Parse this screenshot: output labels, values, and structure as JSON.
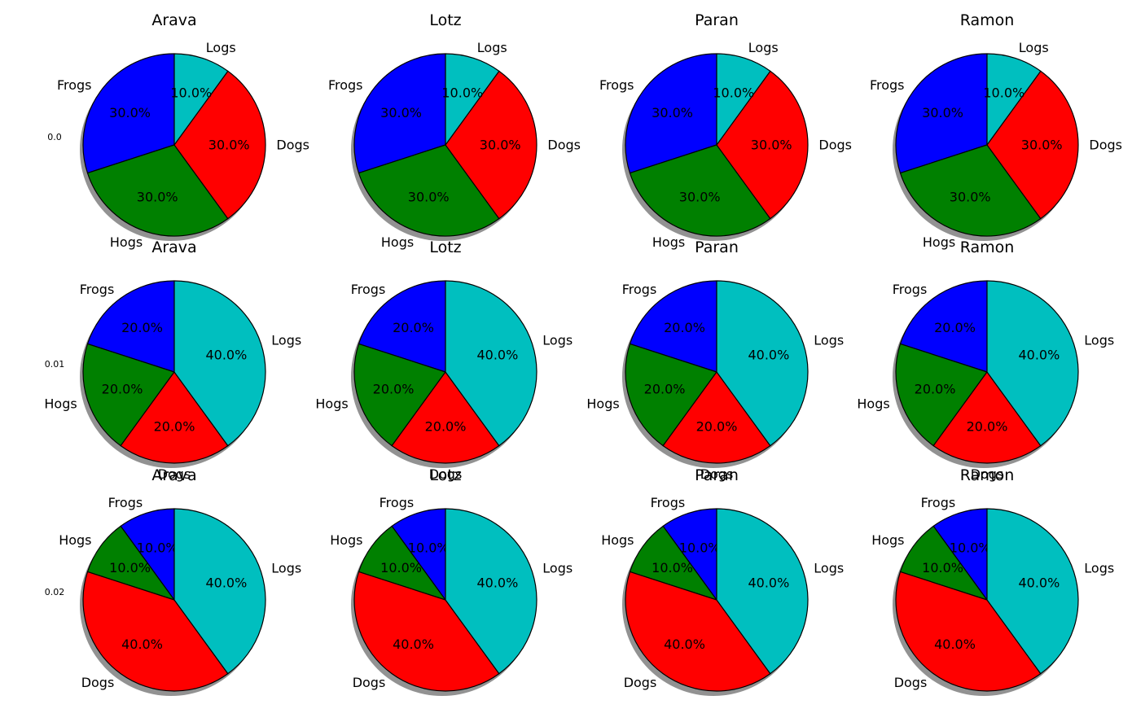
{
  "chart_data": [
    {
      "type": "pie",
      "row_label": "0.0",
      "title": "Arava",
      "labels": [
        "Frogs",
        "Hogs",
        "Dogs",
        "Logs"
      ],
      "values": [
        30,
        30,
        30,
        10
      ],
      "pct_labels": [
        "30.0%",
        "30.0%",
        "30.0%",
        "10.0%"
      ]
    },
    {
      "type": "pie",
      "row_label": "0.0",
      "title": "Lotz",
      "labels": [
        "Frogs",
        "Hogs",
        "Dogs",
        "Logs"
      ],
      "values": [
        30,
        30,
        30,
        10
      ],
      "pct_labels": [
        "30.0%",
        "30.0%",
        "30.0%",
        "10.0%"
      ]
    },
    {
      "type": "pie",
      "row_label": "0.0",
      "title": "Paran",
      "labels": [
        "Frogs",
        "Hogs",
        "Dogs",
        "Logs"
      ],
      "values": [
        30,
        30,
        30,
        10
      ],
      "pct_labels": [
        "30.0%",
        "30.0%",
        "30.0%",
        "10.0%"
      ]
    },
    {
      "type": "pie",
      "row_label": "0.0",
      "title": "Ramon",
      "labels": [
        "Frogs",
        "Hogs",
        "Dogs",
        "Logs"
      ],
      "values": [
        30,
        30,
        30,
        10
      ],
      "pct_labels": [
        "30.0%",
        "30.0%",
        "30.0%",
        "10.0%"
      ]
    },
    {
      "type": "pie",
      "row_label": "0.01",
      "title": "Arava",
      "labels": [
        "Frogs",
        "Hogs",
        "Dogs",
        "Logs"
      ],
      "values": [
        20,
        20,
        20,
        40
      ],
      "pct_labels": [
        "20.0%",
        "20.0%",
        "20.0%",
        "40.0%"
      ]
    },
    {
      "type": "pie",
      "row_label": "0.01",
      "title": "Lotz",
      "labels": [
        "Frogs",
        "Hogs",
        "Dogs",
        "Logs"
      ],
      "values": [
        20,
        20,
        20,
        40
      ],
      "pct_labels": [
        "20.0%",
        "20.0%",
        "20.0%",
        "40.0%"
      ]
    },
    {
      "type": "pie",
      "row_label": "0.01",
      "title": "Paran",
      "labels": [
        "Frogs",
        "Hogs",
        "Dogs",
        "Logs"
      ],
      "values": [
        20,
        20,
        20,
        40
      ],
      "pct_labels": [
        "20.0%",
        "20.0%",
        "20.0%",
        "40.0%"
      ]
    },
    {
      "type": "pie",
      "row_label": "0.01",
      "title": "Ramon",
      "labels": [
        "Frogs",
        "Hogs",
        "Dogs",
        "Logs"
      ],
      "values": [
        20,
        20,
        20,
        40
      ],
      "pct_labels": [
        "20.0%",
        "20.0%",
        "20.0%",
        "40.0%"
      ]
    },
    {
      "type": "pie",
      "row_label": "0.02",
      "title": "Arava",
      "labels": [
        "Frogs",
        "Hogs",
        "Dogs",
        "Logs"
      ],
      "values": [
        10,
        10,
        40,
        40
      ],
      "pct_labels": [
        "10.0%",
        "10.0%",
        "40.0%",
        "40.0%"
      ]
    },
    {
      "type": "pie",
      "row_label": "0.02",
      "title": "Lotz",
      "labels": [
        "Frogs",
        "Hogs",
        "Dogs",
        "Logs"
      ],
      "values": [
        10,
        10,
        40,
        40
      ],
      "pct_labels": [
        "10.0%",
        "10.0%",
        "40.0%",
        "40.0%"
      ]
    },
    {
      "type": "pie",
      "row_label": "0.02",
      "title": "Paran",
      "labels": [
        "Frogs",
        "Hogs",
        "Dogs",
        "Logs"
      ],
      "values": [
        10,
        10,
        40,
        40
      ],
      "pct_labels": [
        "10.0%",
        "10.0%",
        "40.0%",
        "40.0%"
      ]
    },
    {
      "type": "pie",
      "row_label": "0.02",
      "title": "Ramon",
      "labels": [
        "Frogs",
        "Hogs",
        "Dogs",
        "Logs"
      ],
      "values": [
        10,
        10,
        40,
        40
      ],
      "pct_labels": [
        "10.0%",
        "10.0%",
        "40.0%",
        "40.0%"
      ]
    }
  ],
  "colors": {
    "Frogs": "#0000ff",
    "Hogs": "#008000",
    "Dogs": "#ff0000",
    "Logs": "#00bfbf"
  },
  "start_angle_deg": 90,
  "direction": "counterclockwise",
  "shadow": true
}
